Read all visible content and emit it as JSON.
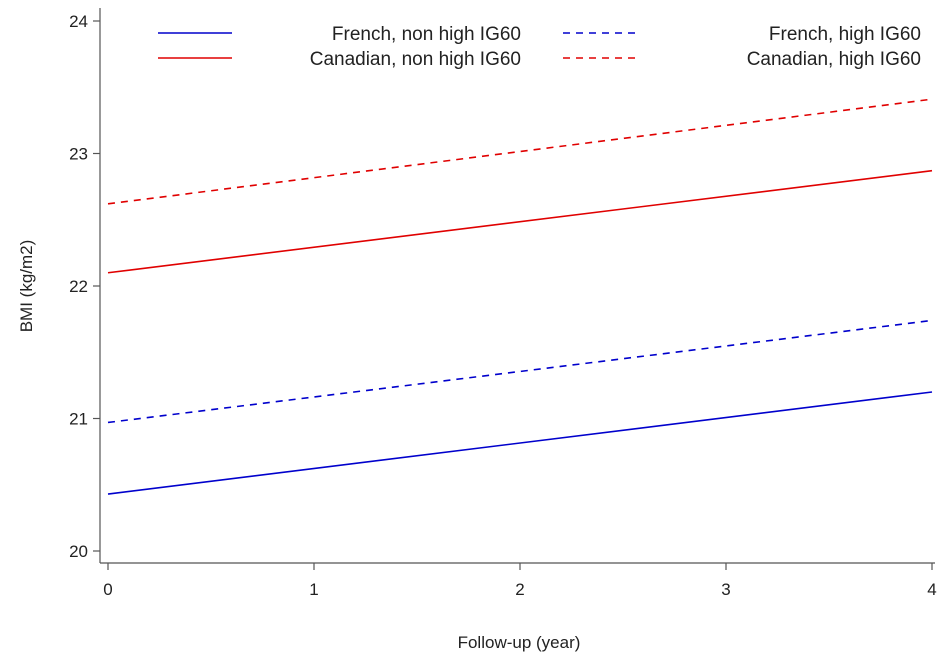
{
  "chart_data": {
    "type": "line",
    "xlabel": "Follow-up (year)",
    "ylabel": "BMI (kg/m2)",
    "xlim": [
      0,
      4
    ],
    "ylim": [
      20,
      24
    ],
    "x_ticks": [
      0,
      1,
      2,
      3,
      4
    ],
    "y_ticks": [
      20,
      21,
      22,
      23,
      24
    ],
    "grid": false,
    "legend_position": "top",
    "x": [
      0,
      4
    ],
    "series": [
      {
        "name": "French, non high IG60",
        "color": "#0000cc",
        "dash": "solid",
        "values": [
          20.43,
          21.2
        ]
      },
      {
        "name": "French, high IG60",
        "color": "#0000cc",
        "dash": "dashed",
        "values": [
          20.97,
          21.74
        ]
      },
      {
        "name": "Canadian, non high IG60",
        "color": "#e00000",
        "dash": "solid",
        "values": [
          22.1,
          22.87
        ]
      },
      {
        "name": "Canadian, high IG60",
        "color": "#e00000",
        "dash": "dashed",
        "values": [
          22.62,
          23.41
        ]
      }
    ]
  }
}
